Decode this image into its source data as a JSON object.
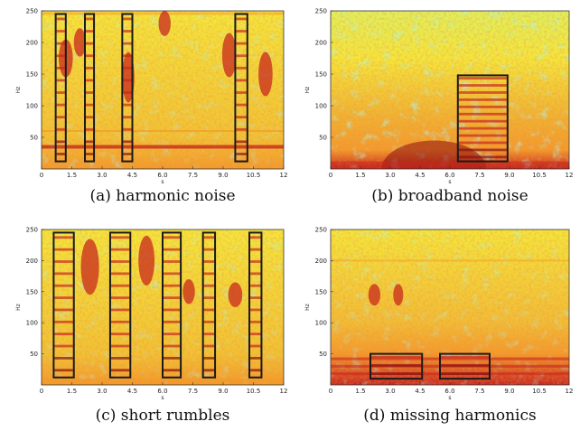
{
  "figure": {
    "panels": [
      {
        "id": "a",
        "caption": "(a) harmonic noise",
        "ylabel": "Hz",
        "xlabel": "s",
        "xticks": [
          "0",
          "1.5",
          "3.0",
          "4.5",
          "6.0",
          "7.5",
          "9.0",
          "10.5",
          "12"
        ],
        "yticks": [
          "50",
          "100",
          "150",
          "200",
          "250"
        ],
        "background": "harmonic",
        "streaks": [
          {
            "x": 1.2,
            "y": 175,
            "w": 0.35,
            "h": 60
          },
          {
            "x": 1.9,
            "y": 200,
            "w": 0.3,
            "h": 45
          },
          {
            "x": 4.3,
            "y": 145,
            "w": 0.3,
            "h": 80
          },
          {
            "x": 6.1,
            "y": 230,
            "w": 0.3,
            "h": 40
          },
          {
            "x": 9.3,
            "y": 180,
            "w": 0.35,
            "h": 70
          },
          {
            "x": 11.1,
            "y": 150,
            "w": 0.35,
            "h": 70
          }
        ],
        "boxes": [
          {
            "x0": 0.7,
            "x1": 1.2,
            "y0": 12,
            "y1": 245
          },
          {
            "x0": 2.15,
            "x1": 2.6,
            "y0": 12,
            "y1": 245
          },
          {
            "x0": 4.0,
            "x1": 4.5,
            "y0": 12,
            "y1": 245
          },
          {
            "x0": 9.6,
            "x1": 10.2,
            "y0": 12,
            "y1": 245
          }
        ]
      },
      {
        "id": "b",
        "caption": "(b) broadband noise",
        "ylabel": "Hz",
        "xlabel": "s",
        "xticks": [
          "0",
          "1.5",
          "3.0",
          "4.5",
          "6.0",
          "7.5",
          "9.0",
          "10.5",
          "12"
        ],
        "yticks": [
          "50",
          "100",
          "150",
          "200",
          "250"
        ],
        "background": "broadband",
        "streaks": [],
        "boxes": [
          {
            "x0": 6.4,
            "x1": 8.9,
            "y0": 12,
            "y1": 148
          }
        ]
      },
      {
        "id": "c",
        "caption": "(c) short rumbles",
        "ylabel": "Hz",
        "xlabel": "s",
        "xticks": [
          "0",
          "1.5",
          "3.0",
          "4.5",
          "6.0",
          "7.5",
          "9.0",
          "10.5",
          "12"
        ],
        "yticks": [
          "50",
          "100",
          "150",
          "200",
          "250"
        ],
        "background": "rumbles",
        "streaks": [
          {
            "x": 2.4,
            "y": 190,
            "w": 0.45,
            "h": 90
          },
          {
            "x": 5.2,
            "y": 200,
            "w": 0.4,
            "h": 80
          },
          {
            "x": 7.3,
            "y": 150,
            "w": 0.3,
            "h": 40
          },
          {
            "x": 9.6,
            "y": 145,
            "w": 0.35,
            "h": 40
          }
        ],
        "boxes": [
          {
            "x0": 0.6,
            "x1": 1.6,
            "y0": 12,
            "y1": 245
          },
          {
            "x0": 3.4,
            "x1": 4.4,
            "y0": 12,
            "y1": 245
          },
          {
            "x0": 6.0,
            "x1": 6.9,
            "y0": 12,
            "y1": 245
          },
          {
            "x0": 8.0,
            "x1": 8.6,
            "y0": 12,
            "y1": 245
          },
          {
            "x0": 10.3,
            "x1": 10.9,
            "y0": 12,
            "y1": 245
          }
        ]
      },
      {
        "id": "d",
        "caption": "(d) missing harmonics",
        "ylabel": "Hz",
        "xlabel": "s",
        "xticks": [
          "0",
          "1.5",
          "3.0",
          "4.5",
          "6.0",
          "7.5",
          "9.0",
          "10.5",
          "12"
        ],
        "yticks": [
          "50",
          "100",
          "150",
          "200",
          "250"
        ],
        "background": "missing",
        "streaks": [
          {
            "x": 2.2,
            "y": 145,
            "w": 0.3,
            "h": 35
          },
          {
            "x": 3.4,
            "y": 145,
            "w": 0.25,
            "h": 35
          }
        ],
        "boxes": [
          {
            "x0": 2.0,
            "x1": 4.6,
            "y0": 10,
            "y1": 50
          },
          {
            "x0": 5.5,
            "x1": 8.0,
            "y0": 10,
            "y1": 50
          }
        ]
      }
    ]
  },
  "colors": {
    "yellow": "#f4e63a",
    "orange": "#f39a2a",
    "red": "#c8281e",
    "darkred": "#8c0f0f",
    "cyan": "#6fe2c9",
    "box": "#1a1a1a"
  }
}
